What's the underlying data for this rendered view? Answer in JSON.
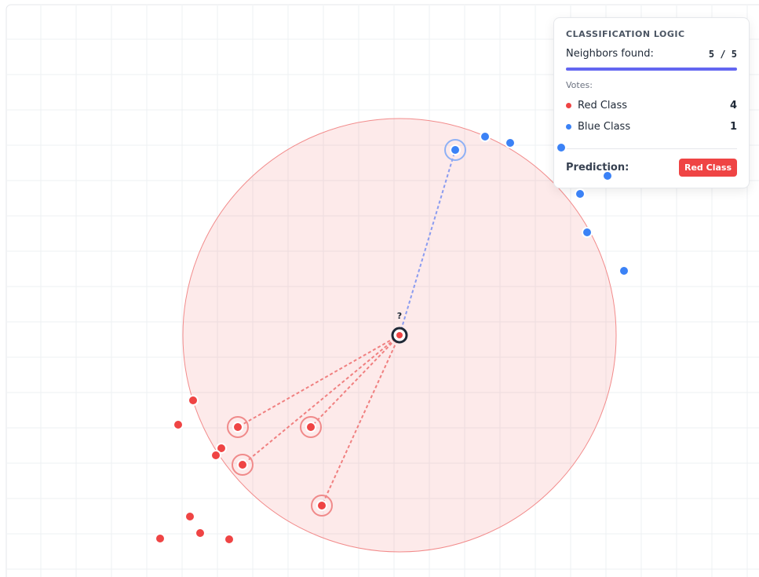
{
  "query_label": "?",
  "panel": {
    "title": "CLASSIFICATION LOGIC",
    "neighbors_label": "Neighbors found:",
    "neighbors_value": "5 / 5",
    "votes_label": "Votes:",
    "classes": [
      {
        "name": "Red Class",
        "count": "4"
      },
      {
        "name": "Blue Class",
        "count": "1"
      }
    ],
    "prediction_label": "Prediction:",
    "prediction": "Red Class"
  }
}
